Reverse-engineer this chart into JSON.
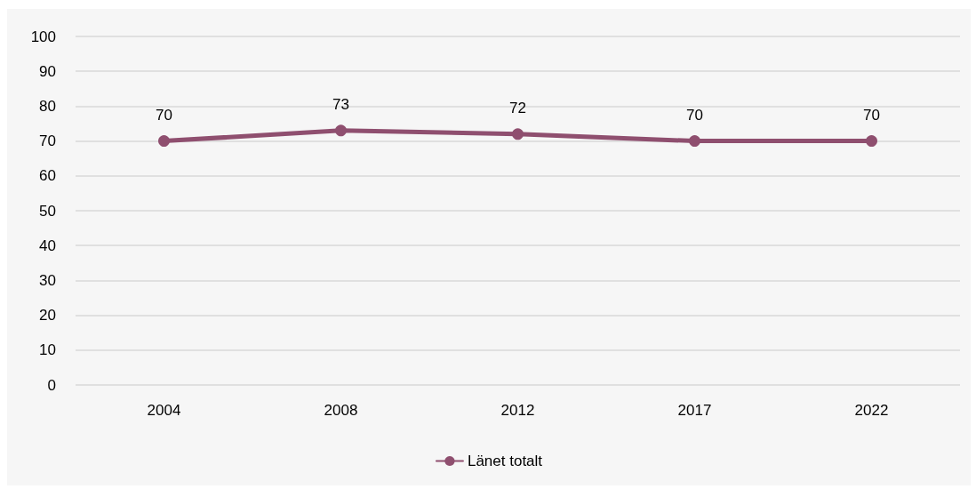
{
  "chart_data": {
    "type": "line",
    "categories": [
      "2004",
      "2008",
      "2012",
      "2017",
      "2022"
    ],
    "series": [
      {
        "name": "Länet totalt",
        "color": "#8f4f6f",
        "values": [
          70,
          73,
          72,
          70,
          70
        ]
      }
    ],
    "ylim": [
      0,
      100
    ],
    "yticks": [
      0,
      10,
      20,
      30,
      40,
      50,
      60,
      70,
      80,
      90,
      100
    ],
    "grid": "y",
    "legend": "bottom",
    "marker": "circle",
    "line_style": "solid",
    "data_labels": true
  }
}
